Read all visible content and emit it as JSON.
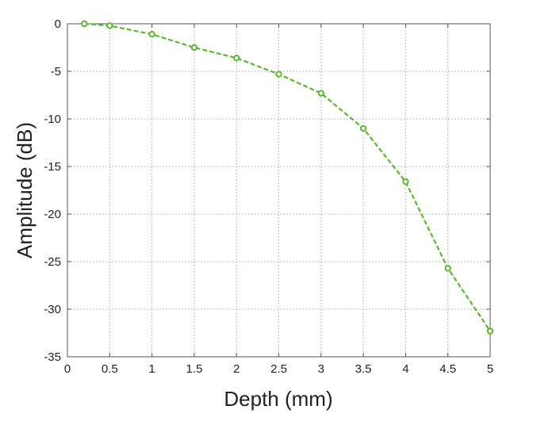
{
  "chart_data": {
    "type": "line",
    "title": "",
    "xlabel": "Depth (mm)",
    "ylabel": "Amplitude (dB)",
    "xlim": [
      0,
      5
    ],
    "ylim": [
      -35,
      0
    ],
    "x_ticks": [
      0,
      0.5,
      1,
      1.5,
      2,
      2.5,
      3,
      3.5,
      4,
      4.5,
      5
    ],
    "y_ticks": [
      0,
      -5,
      -10,
      -15,
      -20,
      -25,
      -30,
      -35
    ],
    "grid": true,
    "series": [
      {
        "color": "#5cb82f",
        "line_style": "dashed",
        "marker": "open-circle",
        "x": [
          0.2,
          0.5,
          1.0,
          1.5,
          2.0,
          2.5,
          3.0,
          3.5,
          4.0,
          4.5,
          5.0
        ],
        "y": [
          0.0,
          -0.2,
          -1.1,
          -2.5,
          -3.6,
          -5.3,
          -7.3,
          -11.0,
          -16.6,
          -25.7,
          -32.3
        ]
      }
    ]
  }
}
